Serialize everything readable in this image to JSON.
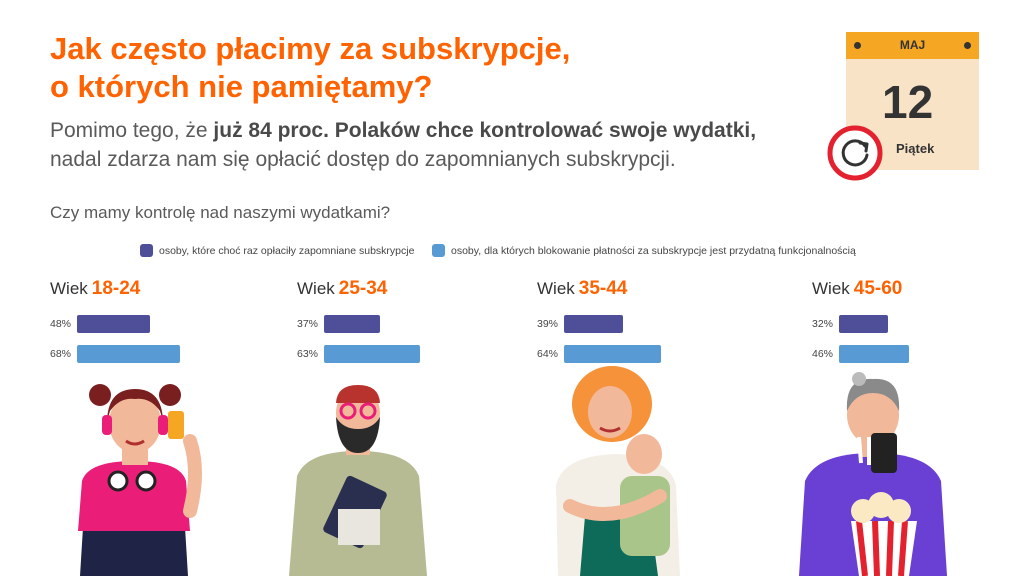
{
  "title": {
    "line1": "Jak często płacimy za subskrypcje,",
    "line2": "o których nie pamiętamy?"
  },
  "subtitle": {
    "part1": "Pomimo tego, że ",
    "bold": "już 84 proc. Polaków chce kontrolować swoje wydatki,",
    "line2": "nadal zdarza nam się opłacić dostęp do zapomnianych subskrypcji."
  },
  "question": "Czy mamy kontrolę nad naszymi wydatkami?",
  "calendar": {
    "month": "MAJ",
    "day": "12",
    "weekday": "Piątek"
  },
  "colors": {
    "accent": "#ff6200",
    "series1": "#4f4f99",
    "series2": "#589ad4",
    "calendar_top": "#f5a623",
    "calendar_body": "#f8e3c7",
    "cycle_ring": "#e4212e"
  },
  "icons": [
    "refresh-cycle-icon",
    "calendar-icon"
  ],
  "chart_data": {
    "type": "bar",
    "title": "Czy mamy kontrolę nad naszymi wydatkami?",
    "group_prefix": "Wiek",
    "categories": [
      "18-24",
      "25-34",
      "35-44",
      "45-60"
    ],
    "series": [
      {
        "name": "osoby, które choć raz opłaciły zapomniane subskrypcje",
        "values": [
          48,
          37,
          39,
          32
        ]
      },
      {
        "name": "osoby, dla których blokowanie płatności za subskrypcje jest przydatną funkcjonalnością",
        "values": [
          68,
          63,
          64,
          46
        ]
      }
    ],
    "unit": "%",
    "xlim": [
      0,
      100
    ],
    "legend_position": "top"
  }
}
